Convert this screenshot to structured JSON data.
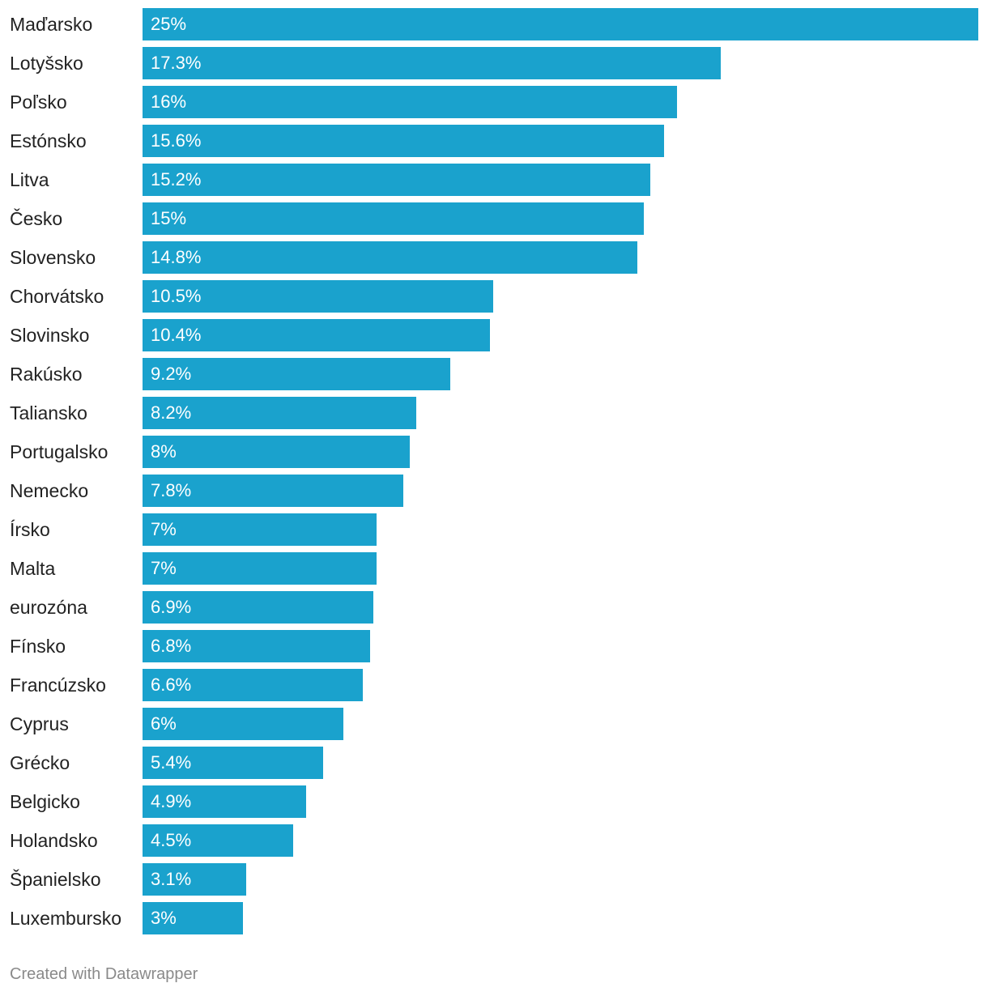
{
  "chart_data": {
    "type": "bar",
    "orientation": "horizontal",
    "categories": [
      "Maďarsko",
      "Lotyšsko",
      "Poľsko",
      "Estónsko",
      "Litva",
      "Česko",
      "Slovensko",
      "Chorvátsko",
      "Slovinsko",
      "Rakúsko",
      "Taliansko",
      "Portugalsko",
      "Nemecko",
      "Írsko",
      "Malta",
      "eurozóna",
      "Fínsko",
      "Francúzsko",
      "Cyprus",
      "Grécko",
      "Belgicko",
      "Holandsko",
      "Španielsko",
      "Luxembursko"
    ],
    "values": [
      25,
      17.3,
      16,
      15.6,
      15.2,
      15,
      14.8,
      10.5,
      10.4,
      9.2,
      8.2,
      8,
      7.8,
      7,
      7,
      6.9,
      6.8,
      6.6,
      6,
      5.4,
      4.9,
      4.5,
      3.1,
      3
    ],
    "value_labels": [
      "25%",
      "17.3%",
      "16%",
      "15.6%",
      "15.2%",
      "15%",
      "14.8%",
      "10.5%",
      "10.4%",
      "9.2%",
      "8.2%",
      "8%",
      "7.8%",
      "7%",
      "7%",
      "6.9%",
      "6.8%",
      "6.6%",
      "6%",
      "5.4%",
      "4.9%",
      "4.5%",
      "3.1%",
      "3%"
    ],
    "xlim": [
      0,
      25
    ],
    "unit": "%",
    "bar_color": "#1aa2cd",
    "grid": false,
    "legend": "none"
  },
  "footer": {
    "credit": "Created with Datawrapper"
  }
}
